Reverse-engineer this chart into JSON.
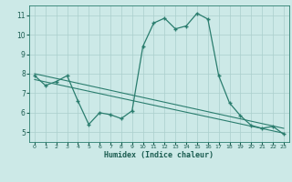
{
  "x": [
    0,
    1,
    2,
    3,
    4,
    5,
    6,
    7,
    8,
    9,
    10,
    11,
    12,
    13,
    14,
    15,
    16,
    17,
    18,
    19,
    20,
    21,
    22,
    23
  ],
  "y_main": [
    7.9,
    7.4,
    7.6,
    7.9,
    6.6,
    5.4,
    6.0,
    5.9,
    5.7,
    6.1,
    9.4,
    10.6,
    10.85,
    10.3,
    10.45,
    11.1,
    10.8,
    7.9,
    6.5,
    5.85,
    5.35,
    5.2,
    5.3,
    4.9
  ],
  "trend1_x": [
    0,
    23
  ],
  "trend1_y": [
    8.0,
    5.2
  ],
  "trend2_x": [
    0,
    23
  ],
  "trend2_y": [
    7.7,
    4.95
  ],
  "line_color": "#2a7d6e",
  "bg_color": "#cce9e7",
  "grid_color": "#aacfcc",
  "xlabel": "Humidex (Indice chaleur)",
  "ylim": [
    4.5,
    11.5
  ],
  "xlim": [
    -0.5,
    23.5
  ],
  "yticks": [
    5,
    6,
    7,
    8,
    9,
    10,
    11
  ],
  "xticks": [
    0,
    1,
    2,
    3,
    4,
    5,
    6,
    7,
    8,
    9,
    10,
    11,
    12,
    13,
    14,
    15,
    16,
    17,
    18,
    19,
    20,
    21,
    22,
    23
  ]
}
